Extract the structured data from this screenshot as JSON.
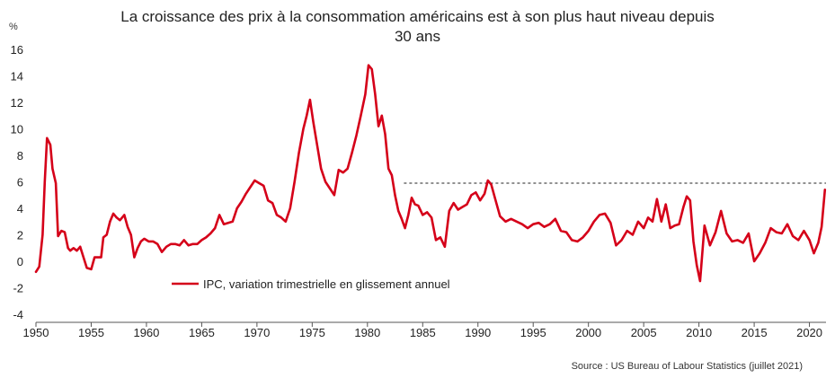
{
  "chart_data": {
    "type": "line",
    "title_lines": [
      "La croissance des prix à la consommation américains est à son plus haut niveau depuis",
      "30 ans"
    ],
    "unit_label": "%",
    "source": "Source : US Bureau of Labour Statistics (juillet 2021)",
    "ylim": [
      -4,
      16
    ],
    "yticks": [
      -4,
      -2,
      0,
      2,
      4,
      6,
      8,
      10,
      12,
      14,
      16
    ],
    "xlim": [
      1950,
      2021.5
    ],
    "xticks": [
      1950,
      1955,
      1960,
      1965,
      1970,
      1975,
      1980,
      1985,
      1990,
      1995,
      2000,
      2005,
      2010,
      2015,
      2020
    ],
    "grid": false,
    "legend_position": "bottom-left",
    "reference_line": {
      "value": 5.9,
      "x_start": 1983.3,
      "x_end": 2021.5,
      "style": "dashed"
    },
    "series": [
      {
        "name": "IPC, variation trimestrielle en glissement annuel",
        "color": "#d50019",
        "x": [
          1950.0,
          1950.3,
          1950.6,
          1950.8,
          1951.0,
          1951.3,
          1951.5,
          1951.8,
          1952.0,
          1952.3,
          1952.6,
          1952.9,
          1953.1,
          1953.4,
          1953.7,
          1954.0,
          1954.3,
          1954.6,
          1955.0,
          1955.3,
          1955.6,
          1955.9,
          1956.1,
          1956.4,
          1956.7,
          1957.0,
          1957.3,
          1957.6,
          1958.0,
          1958.3,
          1958.6,
          1958.9,
          1959.2,
          1959.5,
          1959.8,
          1960.2,
          1960.6,
          1961.0,
          1961.4,
          1961.8,
          1962.2,
          1962.6,
          1963.0,
          1963.4,
          1963.8,
          1964.2,
          1964.6,
          1965.0,
          1965.4,
          1965.8,
          1966.2,
          1966.6,
          1967.0,
          1967.4,
          1967.8,
          1968.2,
          1968.6,
          1969.0,
          1969.4,
          1969.8,
          1970.2,
          1970.6,
          1971.0,
          1971.4,
          1971.8,
          1972.2,
          1972.6,
          1973.0,
          1973.4,
          1973.8,
          1974.2,
          1974.5,
          1974.8,
          1975.1,
          1975.4,
          1975.8,
          1976.2,
          1976.6,
          1977.0,
          1977.4,
          1977.8,
          1978.2,
          1978.6,
          1979.0,
          1979.4,
          1979.8,
          1980.1,
          1980.4,
          1980.7,
          1981.0,
          1981.3,
          1981.6,
          1981.9,
          1982.2,
          1982.5,
          1982.8,
          1983.1,
          1983.4,
          1983.7,
          1984.0,
          1984.3,
          1984.6,
          1985.0,
          1985.4,
          1985.8,
          1986.2,
          1986.6,
          1987.0,
          1987.4,
          1987.8,
          1988.2,
          1988.6,
          1989.0,
          1989.4,
          1989.8,
          1990.2,
          1990.6,
          1990.9,
          1991.2,
          1991.6,
          1992.0,
          1992.5,
          1993.0,
          1993.5,
          1994.0,
          1994.5,
          1995.0,
          1995.5,
          1996.0,
          1996.5,
          1997.0,
          1997.5,
          1998.0,
          1998.5,
          1999.0,
          1999.5,
          2000.0,
          2000.5,
          2001.0,
          2001.5,
          2002.0,
          2002.5,
          2003.0,
          2003.5,
          2004.0,
          2004.5,
          2005.0,
          2005.4,
          2005.8,
          2006.2,
          2006.6,
          2007.0,
          2007.4,
          2007.8,
          2008.2,
          2008.6,
          2008.9,
          2009.2,
          2009.5,
          2009.8,
          2010.1,
          2010.5,
          2011.0,
          2011.5,
          2012.0,
          2012.5,
          2013.0,
          2013.5,
          2014.0,
          2014.5,
          2015.0,
          2015.5,
          2016.0,
          2016.5,
          2017.0,
          2017.5,
          2018.0,
          2018.5,
          2019.0,
          2019.5,
          2020.0,
          2020.4,
          2020.8,
          2021.1,
          2021.4
        ],
        "values": [
          -0.8,
          -0.4,
          2.0,
          6.0,
          9.3,
          8.8,
          7.0,
          5.9,
          1.9,
          2.3,
          2.2,
          1.0,
          0.8,
          1.0,
          0.8,
          1.1,
          0.3,
          -0.5,
          -0.6,
          0.3,
          0.3,
          0.3,
          1.8,
          2.0,
          3.0,
          3.6,
          3.3,
          3.1,
          3.5,
          2.6,
          2.0,
          0.3,
          1.0,
          1.5,
          1.7,
          1.5,
          1.5,
          1.3,
          0.7,
          1.1,
          1.3,
          1.3,
          1.2,
          1.6,
          1.2,
          1.3,
          1.3,
          1.6,
          1.8,
          2.1,
          2.5,
          3.5,
          2.8,
          2.9,
          3.0,
          4.0,
          4.5,
          5.1,
          5.6,
          6.1,
          5.9,
          5.7,
          4.6,
          4.4,
          3.5,
          3.3,
          3.0,
          4.0,
          6.0,
          8.2,
          10.0,
          11.0,
          12.2,
          10.5,
          9.0,
          7.0,
          6.0,
          5.5,
          5.0,
          6.9,
          6.7,
          7.0,
          8.2,
          9.5,
          11.0,
          12.6,
          14.8,
          14.5,
          12.6,
          10.2,
          11.0,
          9.6,
          7.0,
          6.5,
          5.0,
          3.8,
          3.2,
          2.5,
          3.5,
          4.8,
          4.3,
          4.2,
          3.5,
          3.7,
          3.3,
          1.6,
          1.8,
          1.1,
          3.8,
          4.4,
          3.9,
          4.1,
          4.3,
          5.0,
          5.2,
          4.6,
          5.1,
          6.1,
          5.8,
          4.6,
          3.4,
          3.0,
          3.2,
          3.0,
          2.8,
          2.5,
          2.8,
          2.9,
          2.6,
          2.8,
          3.2,
          2.3,
          2.2,
          1.6,
          1.5,
          1.8,
          2.3,
          3.0,
          3.5,
          3.6,
          2.9,
          1.2,
          1.6,
          2.3,
          2.0,
          3.0,
          2.5,
          3.3,
          3.0,
          4.7,
          3.0,
          4.3,
          2.5,
          2.7,
          2.8,
          4.1,
          4.9,
          4.6,
          1.5,
          -0.3,
          -1.5,
          2.7,
          1.2,
          2.2,
          3.8,
          2.1,
          1.5,
          1.6,
          1.4,
          2.1,
          0.0,
          0.6,
          1.4,
          2.5,
          2.2,
          2.1,
          2.8,
          1.9,
          1.6,
          2.3,
          1.6,
          0.6,
          1.4,
          2.6,
          5.4
        ]
      }
    ]
  }
}
